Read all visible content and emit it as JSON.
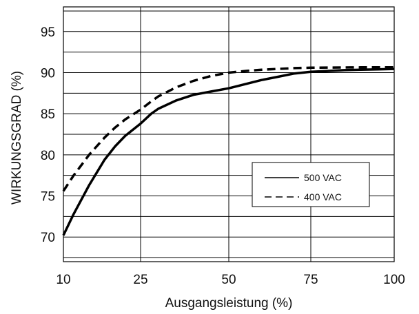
{
  "chart_data": {
    "type": "line",
    "xlabel": "Ausgangsleistung (%)",
    "ylabel": "WIRKUNGSGRAD (%)",
    "x_ticks": [
      10,
      25,
      50,
      75,
      100
    ],
    "y_ticks": [
      70,
      75,
      80,
      85,
      90,
      95
    ],
    "xlim": [
      10,
      100
    ],
    "ylim": [
      67,
      98
    ],
    "grid": true,
    "legend_position": "center-right",
    "series": [
      {
        "name": "500 VAC",
        "style": "solid",
        "color": "#000000",
        "x": [
          10,
          12,
          15,
          18,
          20,
          22,
          25,
          28,
          30,
          35,
          40,
          45,
          50,
          55,
          60,
          65,
          70,
          75,
          80,
          85,
          90,
          95,
          100
        ],
        "y": [
          70.2,
          72.8,
          76.3,
          79.4,
          81.0,
          82.3,
          83.8,
          85.0,
          85.6,
          86.6,
          87.3,
          87.7,
          88.1,
          88.6,
          89.1,
          89.5,
          89.9,
          90.1,
          90.2,
          90.3,
          90.35,
          90.4,
          90.45
        ]
      },
      {
        "name": "400 VAC",
        "style": "dashed",
        "color": "#000000",
        "x": [
          10,
          12,
          15,
          18,
          20,
          22,
          25,
          28,
          30,
          35,
          40,
          45,
          50,
          55,
          60,
          65,
          70,
          75,
          80,
          85,
          90,
          95,
          100
        ],
        "y": [
          75.6,
          77.5,
          80.0,
          82.1,
          83.3,
          84.3,
          85.5,
          86.5,
          87.1,
          88.2,
          89.0,
          89.6,
          90.0,
          90.2,
          90.35,
          90.45,
          90.55,
          90.6,
          90.62,
          90.63,
          90.64,
          90.65,
          90.65
        ]
      }
    ]
  }
}
